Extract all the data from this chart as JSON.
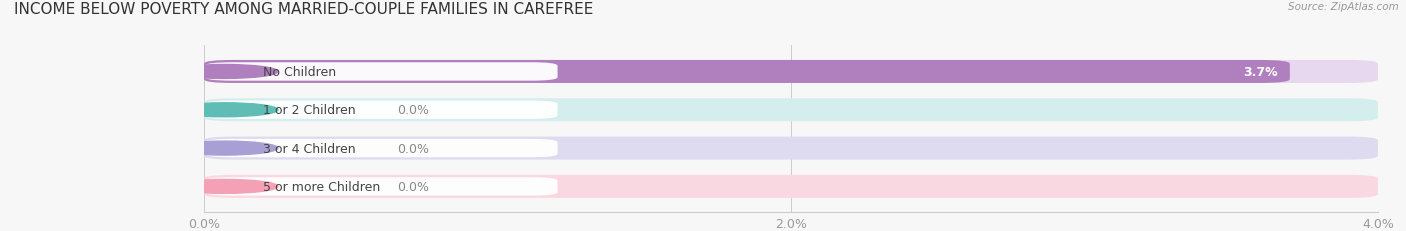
{
  "title": "INCOME BELOW POVERTY AMONG MARRIED-COUPLE FAMILIES IN CAREFREE",
  "source": "Source: ZipAtlas.com",
  "categories": [
    "No Children",
    "1 or 2 Children",
    "3 or 4 Children",
    "5 or more Children"
  ],
  "values": [
    3.7,
    0.0,
    0.0,
    0.0
  ],
  "bar_colors": [
    "#b07fbe",
    "#5fbdb5",
    "#a89fd4",
    "#f4a0b5"
  ],
  "bar_bg_colors": [
    "#e8d8ef",
    "#d4eeed",
    "#dedaf0",
    "#fad8e2"
  ],
  "xlim": [
    0,
    4.0
  ],
  "xticks": [
    0.0,
    2.0,
    4.0
  ],
  "xtick_labels": [
    "0.0%",
    "2.0%",
    "4.0%"
  ],
  "label_fontsize": 9,
  "title_fontsize": 11,
  "background_color": "#f7f7f7"
}
